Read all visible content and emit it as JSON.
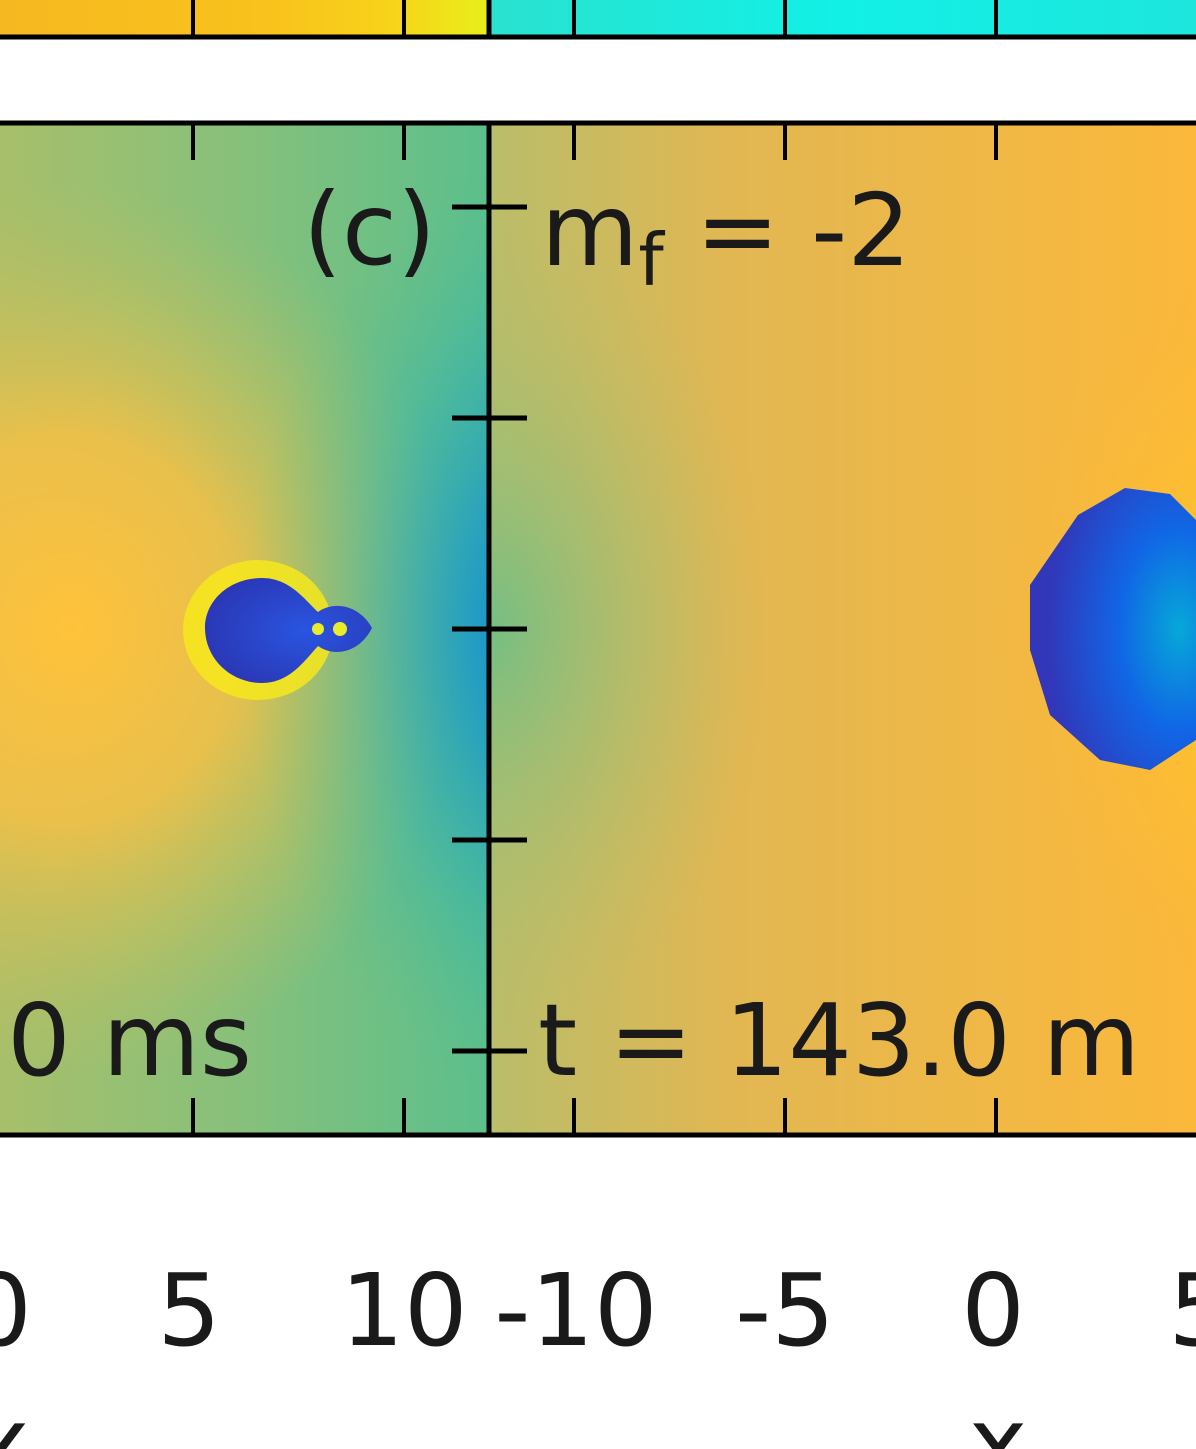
{
  "chart_data": {
    "type": "heatmap",
    "panels": [
      {
        "label": "(c)",
        "time_annotation": "0 ms",
        "x_ticks": [
          "5",
          "10"
        ]
      },
      {
        "annotation": "m",
        "annotation_sub": "f",
        "annotation_value": " = -2",
        "time_annotation": "t = 143.0 m",
        "x_ticks": [
          "-10",
          "-5",
          "0",
          "5"
        ]
      }
    ],
    "xlabel_fragment": "x",
    "colors": {
      "top_strip_left": "#f5c023",
      "top_strip_right": "#1de0d6",
      "panel_left_bg": "#8cbf78",
      "panel_right_bg": "#f2b547",
      "core_blue": "#2b3ccf",
      "frame": "#000000"
    }
  }
}
